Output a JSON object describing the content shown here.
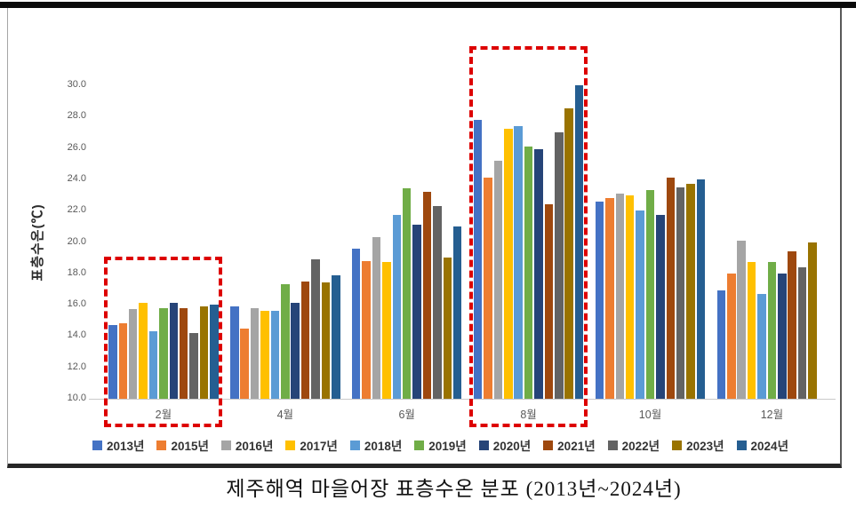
{
  "chart_data": {
    "type": "bar",
    "title": "제주해역 마을어장 표층수온 분포 (2013년~2024년)",
    "ylabel": "표층수온(℃)",
    "ylim": [
      10.0,
      30.0
    ],
    "ytick_step": 2.0,
    "yticks": [
      "30.0",
      "28.0",
      "26.0",
      "24.0",
      "22.0",
      "20.0",
      "18.0",
      "16.0",
      "14.0",
      "12.0",
      "10.0"
    ],
    "categories": [
      "2월",
      "4월",
      "6월",
      "8월",
      "10월",
      "12월"
    ],
    "series": [
      {
        "name": "2013년",
        "color": "#4472C4",
        "values": [
          14.7,
          15.9,
          19.6,
          27.8,
          22.6,
          16.9
        ]
      },
      {
        "name": "2015년",
        "color": "#ED7D31",
        "values": [
          14.8,
          14.5,
          18.8,
          24.1,
          22.8,
          18.0
        ]
      },
      {
        "name": "2016년",
        "color": "#A5A5A5",
        "values": [
          15.7,
          15.8,
          20.3,
          25.2,
          23.1,
          20.1
        ]
      },
      {
        "name": "2017년",
        "color": "#FFC000",
        "values": [
          16.1,
          15.6,
          18.7,
          27.2,
          23.0,
          18.7
        ]
      },
      {
        "name": "2018년",
        "color": "#5B9BD5",
        "values": [
          14.3,
          15.6,
          21.7,
          27.4,
          22.0,
          16.7
        ]
      },
      {
        "name": "2019년",
        "color": "#70AD47",
        "values": [
          15.8,
          17.3,
          23.4,
          26.1,
          23.3,
          18.7
        ]
      },
      {
        "name": "2020년",
        "color": "#264478",
        "values": [
          16.1,
          16.1,
          21.1,
          25.9,
          21.7,
          18.0
        ]
      },
      {
        "name": "2021년",
        "color": "#9E480E",
        "values": [
          15.8,
          17.5,
          23.2,
          22.4,
          24.1,
          19.4
        ]
      },
      {
        "name": "2022년",
        "color": "#636363",
        "values": [
          14.2,
          18.9,
          22.3,
          27.0,
          23.5,
          18.4
        ]
      },
      {
        "name": "2023년",
        "color": "#997300",
        "values": [
          15.9,
          17.4,
          19.0,
          28.5,
          23.7,
          20.0
        ]
      },
      {
        "name": "2024년",
        "color": "#255E91",
        "values": [
          16.0,
          17.9,
          21.0,
          30.0,
          24.0,
          null
        ]
      }
    ],
    "legend_position": "bottom",
    "grid": false,
    "highlights": [
      {
        "category": "2월",
        "style": "red-dashed-box"
      },
      {
        "category": "8월",
        "style": "red-dashed-box"
      }
    ],
    "highlight_color": "#DD0000"
  }
}
